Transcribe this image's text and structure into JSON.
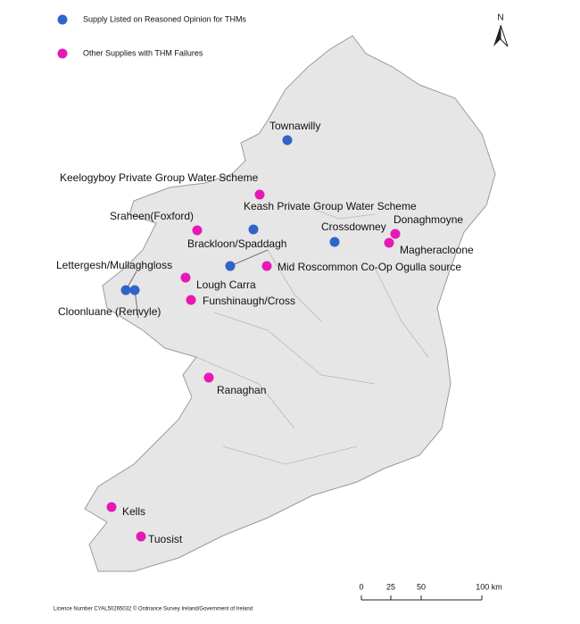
{
  "legend": [
    {
      "label": "Supply Listed on Reasoned Opinion for THMs",
      "color": "#2f64c8",
      "sites": [
        "Townawilly",
        "Keash Private Group Water Scheme",
        "Crossdowney",
        "Brackloon/Spaddagh",
        "Lettergesh/Mullaghgloss",
        "Cloonluane (Renvyle)"
      ]
    },
    {
      "label": "Other Supplies with THM Failures",
      "color": "#e619b4",
      "sites": [
        "Keelogyboy Private Group Water Scheme",
        "Sraheen(Foxford)",
        "Donaghmoyne",
        "Magheracloone",
        "Mid Roscommon Co-Op Ogulla source",
        "Lough Carra",
        "Funshinaugh/Cross",
        "Ranaghan",
        "Kells",
        "Tuosist"
      ]
    }
  ],
  "north": "N",
  "scale": {
    "labels": [
      "0",
      "25",
      "50",
      "100 km"
    ]
  },
  "licence": "Licence Number CYAL50265032 © Ordnance Survey Ireland/Government of Ireland"
}
